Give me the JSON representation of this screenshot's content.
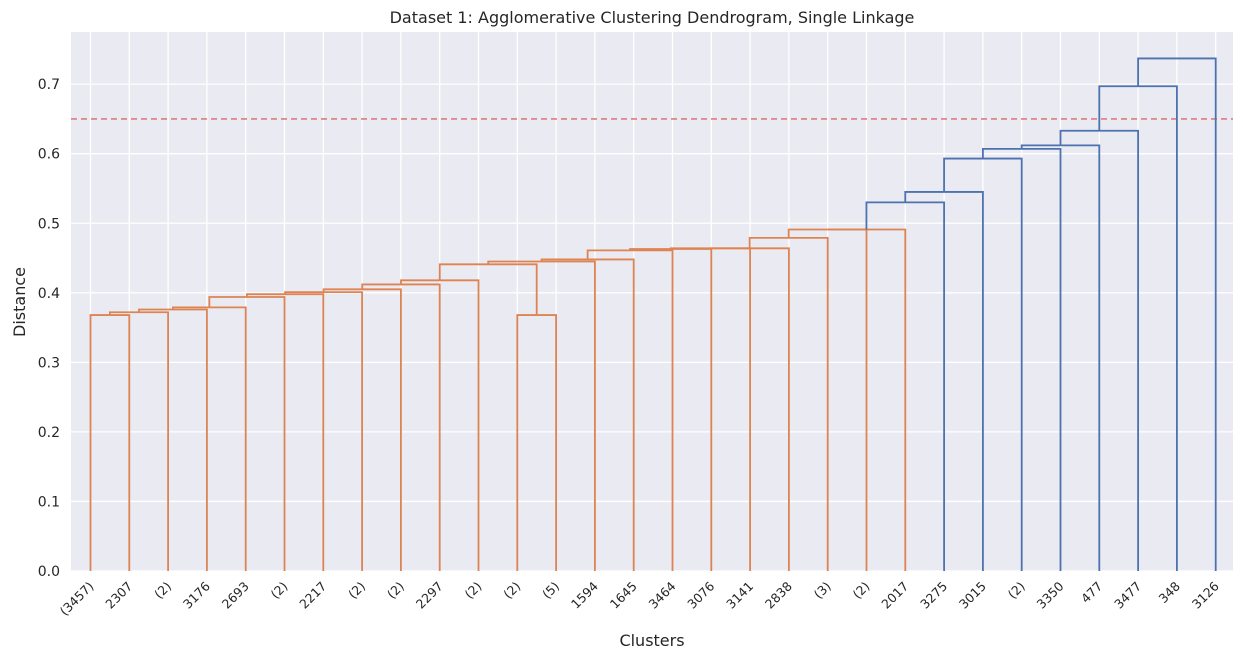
{
  "chart_data": {
    "type": "dendrogram",
    "title": "Dataset 1: Agglomerative Clustering Dendrogram, Single Linkage",
    "xlabel": "Clusters",
    "ylabel": "Distance",
    "ylim": [
      0,
      0.775
    ],
    "yticks": [
      "0.0",
      "0.1",
      "0.2",
      "0.3",
      "0.4",
      "0.5",
      "0.6",
      "0.7"
    ],
    "grid": true,
    "threshold": 0.65,
    "colors": {
      "background": "#eaeaf2",
      "grid": "#ffffff",
      "cluster": "#dd8452",
      "above": "#4c72b0",
      "threshold": "#dd7c7c"
    },
    "leaves": [
      "(3457)",
      "2307",
      "(2)",
      "3176",
      "2693",
      "(2)",
      "2217",
      "(2)",
      "(2)",
      "2297",
      "(2)",
      "(2)",
      "(5)",
      "1594",
      "1645",
      "3464",
      "3076",
      "3141",
      "2838",
      "(3)",
      "(2)",
      "2017",
      "3275",
      "3015",
      "(2)",
      "3350",
      "477",
      "3477",
      "348",
      "3126"
    ],
    "merges": [
      {
        "left": 0,
        "right": 1,
        "height": 0.368,
        "color": "cluster"
      },
      {
        "left": "n0",
        "right": 2,
        "height": 0.372,
        "color": "cluster"
      },
      {
        "left": "n1",
        "right": 3,
        "height": 0.376,
        "color": "cluster"
      },
      {
        "left": "n2",
        "right": 4,
        "height": 0.379,
        "color": "cluster"
      },
      {
        "left": "n3",
        "right": 5,
        "height": 0.394,
        "color": "cluster"
      },
      {
        "left": "n4",
        "right": 6,
        "height": 0.398,
        "color": "cluster"
      },
      {
        "left": "n5",
        "right": 7,
        "height": 0.401,
        "color": "cluster"
      },
      {
        "left": "n6",
        "right": 8,
        "height": 0.405,
        "color": "cluster"
      },
      {
        "left": "n7",
        "right": 9,
        "height": 0.412,
        "color": "cluster"
      },
      {
        "left": "n8",
        "right": 10,
        "height": 0.418,
        "color": "cluster"
      },
      {
        "left": 11,
        "right": 12,
        "height": 0.368,
        "color": "cluster"
      },
      {
        "left": "n9",
        "right": "n10",
        "height": 0.441,
        "color": "cluster"
      },
      {
        "left": "n11",
        "right": 13,
        "height": 0.445,
        "color": "cluster"
      },
      {
        "left": "n12",
        "right": 14,
        "height": 0.448,
        "color": "cluster"
      },
      {
        "left": "n13",
        "right": 15,
        "height": 0.461,
        "color": "cluster"
      },
      {
        "left": "n14",
        "right": 16,
        "height": 0.463,
        "color": "cluster"
      },
      {
        "left": "n15",
        "right": 17,
        "height": 0.464,
        "color": "cluster"
      },
      {
        "left": "n16",
        "right": 18,
        "height": 0.464,
        "color": "cluster"
      },
      {
        "left": "n17",
        "right": 19,
        "height": 0.479,
        "color": "cluster"
      },
      {
        "left": "n18",
        "right": 20,
        "height": 0.491,
        "color": "cluster"
      },
      {
        "left": "n19",
        "right": 21,
        "height": 0.491,
        "color": "cluster"
      },
      {
        "left": "n20",
        "right": 22,
        "height": 0.53,
        "color": "above"
      },
      {
        "left": "n21",
        "right": 23,
        "height": 0.545,
        "color": "above"
      },
      {
        "left": "n22",
        "right": 24,
        "height": 0.593,
        "color": "above"
      },
      {
        "left": "n23",
        "right": 25,
        "height": 0.607,
        "color": "above"
      },
      {
        "left": "n24",
        "right": 26,
        "height": 0.612,
        "color": "above"
      },
      {
        "left": "n25",
        "right": 27,
        "height": 0.633,
        "color": "above"
      },
      {
        "left": "n26",
        "right": 28,
        "height": 0.697,
        "color": "above"
      },
      {
        "left": "n27",
        "right": 29,
        "height": 0.737,
        "color": "above"
      }
    ]
  }
}
